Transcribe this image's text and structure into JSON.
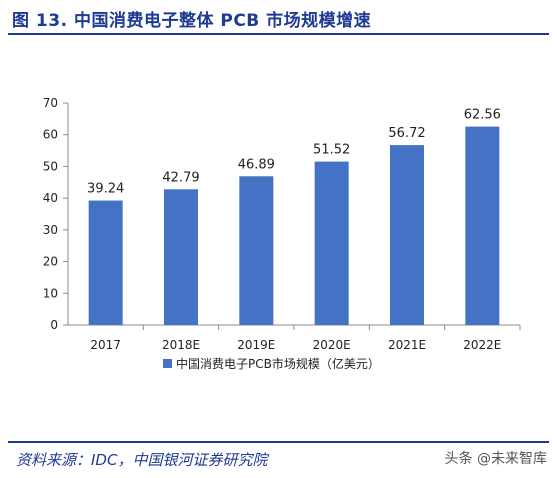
{
  "header": {
    "title": "图 13. 中国消费电子整体 PCB 市场规模增速"
  },
  "footer": {
    "source": "资料来源：IDC，中国银河证券研究院",
    "watermark": "头条 @未来智库"
  },
  "colors": {
    "bar": "#4472c4",
    "heading": "#1f3a93"
  },
  "chart_data": {
    "type": "bar",
    "categories": [
      "2017",
      "2018E",
      "2019E",
      "2020E",
      "2021E",
      "2022E"
    ],
    "series": [
      {
        "name": "中国消费电子PCB市场规模（亿美元）",
        "values": [
          39.24,
          42.79,
          46.89,
          51.52,
          56.72,
          62.56
        ]
      }
    ],
    "data_labels": [
      "39.24",
      "42.79",
      "46.89",
      "51.52",
      "56.72",
      "62.56"
    ],
    "y_ticks": [
      "0",
      "10",
      "20",
      "30",
      "40",
      "50",
      "60",
      "70"
    ],
    "ylim": [
      0,
      70
    ],
    "grid": false,
    "legend_position": "bottom"
  }
}
